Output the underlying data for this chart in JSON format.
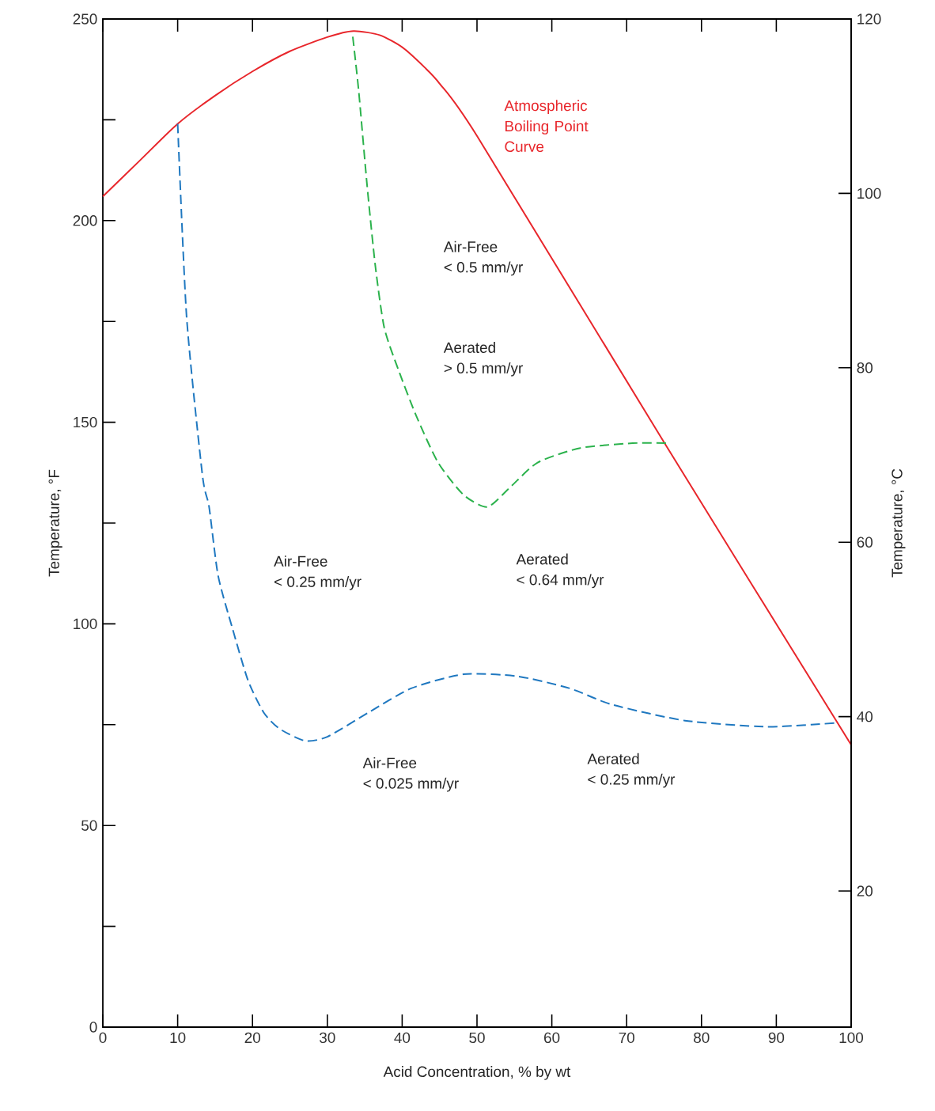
{
  "chart_data": {
    "type": "line",
    "xlabel": "Acid Concentration, % by wt",
    "ylabel": "Temperature, °F",
    "y2label": "Temperature, °C",
    "xlim": [
      0,
      100
    ],
    "xticks": [
      0,
      10,
      20,
      30,
      40,
      50,
      60,
      70,
      80,
      90,
      100
    ],
    "ylim": [
      0,
      250
    ],
    "yticks": [
      0,
      {
        "value": 25,
        "label": null
      },
      50,
      {
        "value": 75,
        "label": null
      },
      100,
      {
        "value": 125,
        "label": null
      },
      150,
      {
        "value": 175,
        "label": null
      },
      200,
      {
        "value": 225,
        "label": null
      },
      250
    ],
    "y2lim": [
      4.4,
      120
    ],
    "y2ticks": [
      20,
      40,
      60,
      80,
      100,
      120
    ],
    "series": [
      {
        "name": "Atmospheric Boiling Point Curve",
        "color": "#e8262b",
        "line_style": "solid",
        "x": [
          0,
          5,
          10,
          15,
          20,
          25,
          30,
          33.5,
          37,
          40,
          43,
          45,
          50,
          75,
          100
        ],
        "values": [
          206,
          215,
          224,
          231,
          237,
          242,
          245.5,
          247,
          246,
          243,
          238,
          234,
          221,
          145,
          70
        ]
      },
      {
        "color": "#1f78c0",
        "line_style": "dashed",
        "x": [
          10,
          11.2,
          13.3,
          14.2,
          15.4,
          17.3,
          19.4,
          21.5,
          23.6,
          27,
          30,
          35.5,
          41.2,
          48.2,
          55.4,
          62.4,
          68,
          77.8,
          88.4,
          94.7,
          98.3
        ],
        "values": [
          224,
          176,
          137,
          129,
          112,
          99,
          86,
          78,
          74,
          71,
          72,
          78,
          84,
          87.5,
          87,
          84,
          80,
          76,
          74.5,
          75,
          75.5
        ]
      },
      {
        "color": "#2bb24c",
        "line_style": "dashed",
        "x": [
          33.4,
          34.2,
          35.3,
          36.4,
          37.6,
          39.5,
          41.9,
          44.8,
          48.2,
          51.4,
          54.5,
          58.1,
          63.8,
          70.8,
          75.5
        ],
        "values": [
          245.6,
          232,
          209,
          189,
          173.5,
          163,
          151.5,
          140,
          132,
          129,
          134,
          140,
          143.6,
          144.8,
          144.8
        ]
      }
    ],
    "annotations": [
      "Air-Free < 0.5 mm/yr",
      "Aerated > 0.5 mm/yr",
      "Air-Free < 0.25 mm/yr",
      "Aerated < 0.64 mm/yr",
      "Air-Free < 0.025 mm/yr",
      "Aerated < 0.25 mm/yr"
    ]
  }
}
